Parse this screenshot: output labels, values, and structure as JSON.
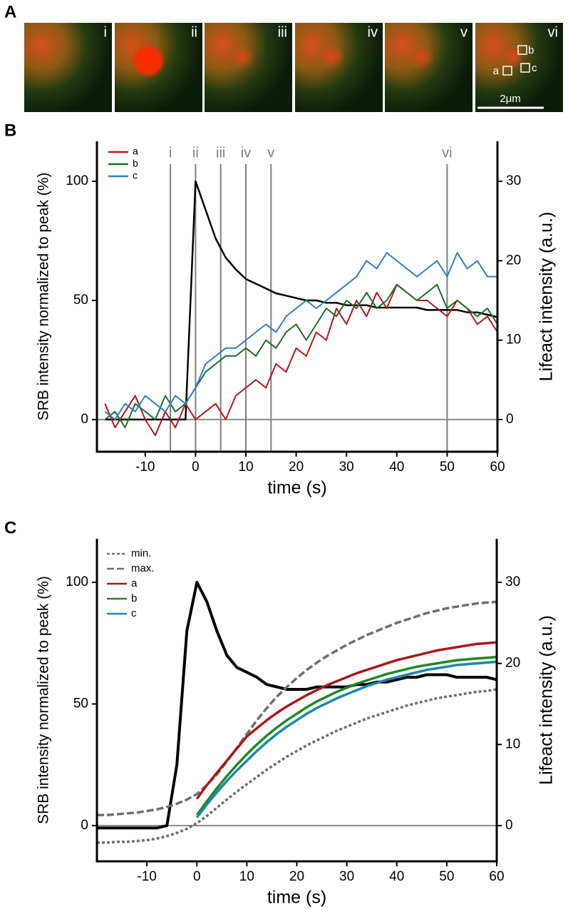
{
  "panel_a": {
    "label": "A",
    "tiles": [
      "i",
      "ii",
      "iii",
      "iv",
      "v",
      "vi"
    ],
    "roi_labels": [
      "a",
      "b",
      "c"
    ],
    "scale_bar": "2μm"
  },
  "chart_data": [
    {
      "type": "line",
      "panel": "B",
      "xlabel": "time (s)",
      "ylabel": "SRB intensity normalized to peak (%)",
      "y2label": "Lifeact intensity (a.u.)",
      "x": [
        -18,
        -16,
        -14,
        -12,
        -10,
        -8,
        -6,
        -4,
        -2,
        0,
        2,
        4,
        6,
        8,
        10,
        12,
        14,
        16,
        18,
        20,
        22,
        24,
        26,
        28,
        30,
        32,
        34,
        36,
        38,
        40,
        42,
        44,
        46,
        48,
        50,
        52,
        54,
        56,
        58,
        60
      ],
      "xlim": [
        -19.6,
        60
      ],
      "xticks": [
        -10,
        0,
        10,
        20,
        30,
        40,
        50,
        60
      ],
      "ylim": [
        -13.5,
        116.8
      ],
      "yticks": [
        0,
        50,
        100
      ],
      "y2lim": [
        -4.05,
        35.04
      ],
      "y2ticks": [
        0,
        10,
        20,
        30
      ],
      "hline": 0,
      "markers": [
        {
          "x": -5,
          "label": "i"
        },
        {
          "x": 0,
          "label": "ii"
        },
        {
          "x": 5,
          "label": "iii"
        },
        {
          "x": 10,
          "label": "iv"
        },
        {
          "x": 15,
          "label": "v"
        },
        {
          "x": 50,
          "label": "vi"
        }
      ],
      "series": [
        {
          "values": [
            0,
            0,
            0,
            0,
            0,
            0,
            0,
            0,
            0,
            100,
            88,
            76,
            68,
            63,
            59,
            57,
            55,
            53,
            52,
            51,
            50,
            50,
            49,
            49,
            48,
            48,
            48,
            47,
            47,
            47,
            47,
            47,
            46,
            46,
            46,
            46,
            45,
            45,
            44,
            43
          ],
          "color": "#000000",
          "axis": "y"
        },
        {
          "name": "a",
          "color": "#b3171f",
          "axis": "y2",
          "values": [
            2,
            -1,
            1,
            3,
            0,
            -2,
            1,
            -1,
            2,
            0,
            1,
            2,
            0,
            3,
            4,
            5,
            4,
            7,
            6,
            9,
            8,
            11,
            10,
            14,
            12,
            15,
            13,
            16,
            14,
            17,
            16,
            15,
            15,
            14,
            13,
            15,
            14,
            12,
            13,
            11
          ]
        },
        {
          "name": "b",
          "color": "#1d6b2c",
          "axis": "y2",
          "values": [
            0,
            1,
            -1,
            2,
            1,
            0,
            3,
            1,
            2,
            4,
            6,
            7,
            8,
            8,
            9,
            8,
            10,
            9,
            11,
            12,
            10,
            12,
            14,
            13,
            15,
            14,
            16,
            14,
            15,
            17,
            16,
            15,
            16,
            17,
            14,
            15,
            14,
            13,
            14,
            12
          ]
        },
        {
          "name": "c",
          "color": "#2b80c6",
          "axis": "y2",
          "values": [
            1,
            0,
            2,
            1,
            3,
            2,
            1,
            3,
            2,
            4,
            7,
            8,
            9,
            9,
            10,
            11,
            12,
            11,
            13,
            14,
            15,
            14,
            15,
            16,
            17,
            18,
            20,
            19,
            21,
            20,
            19,
            18,
            19,
            20,
            18,
            21,
            19,
            20,
            18,
            18
          ]
        }
      ]
    },
    {
      "type": "line",
      "panel": "C",
      "xlabel": "time (s)",
      "ylabel": "SRB intensity normalized to peak (%)",
      "y2label": "Lifeact intensity (a.u.)",
      "x": [
        -20,
        -18,
        -16,
        -14,
        -12,
        -10,
        -8,
        -6,
        -4,
        -2,
        0,
        2,
        4,
        6,
        8,
        10,
        12,
        14,
        16,
        18,
        20,
        22,
        24,
        26,
        28,
        30,
        32,
        34,
        36,
        38,
        40,
        42,
        44,
        46,
        48,
        50,
        52,
        54,
        56,
        58,
        60
      ],
      "xlim": [
        -20,
        60
      ],
      "xticks": [
        -10,
        0,
        10,
        20,
        30,
        40,
        50,
        60
      ],
      "ylim": [
        -14.7,
        117.9
      ],
      "yticks": [
        0,
        50,
        100
      ],
      "y2lim": [
        -4.41,
        35.37
      ],
      "y2ticks": [
        0,
        10,
        20,
        30
      ],
      "hline": 0,
      "series": [
        {
          "values": [
            -1,
            -1,
            -1,
            -1,
            -1,
            -1,
            -1,
            0,
            25,
            80,
            100,
            92,
            80,
            70,
            65,
            63,
            61,
            58,
            57,
            56,
            56,
            56,
            57,
            57,
            57,
            57,
            58,
            58,
            59,
            59,
            60,
            61,
            61,
            62,
            62,
            62,
            61,
            61,
            61,
            61,
            60
          ],
          "color": "#000000",
          "axis": "y"
        },
        {
          "name": "min.",
          "color": "#707070",
          "axis": "y2",
          "dash": "dotted",
          "values": [
            -2.1,
            -2.1,
            -2.0,
            -2.0,
            -1.9,
            -1.8,
            -1.6,
            -1.3,
            -0.9,
            -0.4,
            0.3,
            1.2,
            2.2,
            3.2,
            4.2,
            5.1,
            6.0,
            6.9,
            7.7,
            8.5,
            9.2,
            9.9,
            10.5,
            11.1,
            11.7,
            12.2,
            12.7,
            13.2,
            13.6,
            14.0,
            14.4,
            14.8,
            15.1,
            15.4,
            15.7,
            15.9,
            16.1,
            16.3,
            16.5,
            16.6,
            16.8
          ]
        },
        {
          "name": "max.",
          "color": "#707070",
          "axis": "y2",
          "dash": "dashed",
          "values": [
            1.3,
            1.3,
            1.4,
            1.5,
            1.6,
            1.8,
            2.0,
            2.3,
            2.7,
            3.2,
            3.9,
            5.0,
            6.3,
            7.9,
            9.6,
            11.3,
            13.0,
            14.5,
            15.9,
            17.1,
            18.2,
            19.2,
            20.1,
            20.9,
            21.6,
            22.3,
            22.9,
            23.5,
            24.0,
            24.5,
            25.0,
            25.4,
            25.8,
            26.2,
            26.5,
            26.8,
            27.0,
            27.2,
            27.4,
            27.5,
            27.6
          ]
        },
        {
          "name": "a",
          "color": "#a51a1a",
          "axis": "y2",
          "values": [
            null,
            null,
            null,
            null,
            null,
            null,
            null,
            null,
            null,
            null,
            3.3,
            5.0,
            6.5,
            8.0,
            9.5,
            11.0,
            12.0,
            13.0,
            13.9,
            14.7,
            15.4,
            16.1,
            16.7,
            17.3,
            17.8,
            18.3,
            18.8,
            19.2,
            19.6,
            20.0,
            20.4,
            20.7,
            21.0,
            21.3,
            21.6,
            21.8,
            22.0,
            22.2,
            22.4,
            22.5,
            22.6
          ]
        },
        {
          "name": "b",
          "color": "#1e8a22",
          "axis": "y2",
          "values": [
            null,
            null,
            null,
            null,
            null,
            null,
            null,
            null,
            null,
            null,
            1.3,
            3.0,
            4.6,
            6.1,
            7.5,
            8.8,
            10.0,
            11.1,
            12.1,
            13.0,
            13.8,
            14.6,
            15.3,
            15.9,
            16.5,
            17.0,
            17.5,
            17.9,
            18.3,
            18.7,
            19.0,
            19.3,
            19.6,
            19.8,
            20.0,
            20.2,
            20.4,
            20.5,
            20.6,
            20.7,
            20.8
          ]
        },
        {
          "name": "c",
          "color": "#1c87ad",
          "axis": "y2",
          "values": [
            null,
            null,
            null,
            null,
            null,
            null,
            null,
            null,
            null,
            null,
            1.0,
            2.6,
            4.1,
            5.5,
            6.8,
            8.0,
            9.2,
            10.3,
            11.3,
            12.2,
            13.0,
            13.8,
            14.5,
            15.1,
            15.7,
            16.2,
            16.7,
            17.2,
            17.6,
            18.0,
            18.3,
            18.6,
            18.9,
            19.2,
            19.4,
            19.6,
            19.8,
            19.9,
            20.0,
            20.1,
            20.2
          ]
        }
      ]
    }
  ]
}
